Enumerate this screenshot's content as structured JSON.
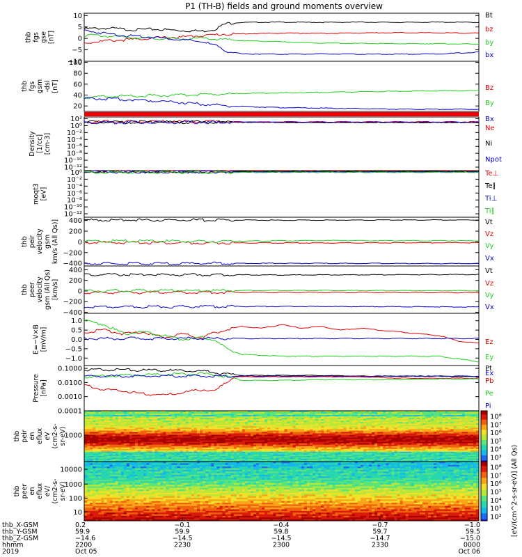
{
  "title": "P1 (TH-B) fields and ground moments overview",
  "colors": {
    "black": "#000000",
    "red": "#dd0000",
    "green": "#22cc22",
    "blue": "#0000cc"
  },
  "chart_data": [
    {
      "type": "line",
      "ylabel": [
        "thb",
        "fgs",
        "gse",
        "[nT]"
      ],
      "yticks": [
        "10",
        "5",
        "0",
        "−5",
        "−10"
      ],
      "ytick_values": [
        10,
        5,
        0,
        -5,
        -10
      ],
      "ylim": [
        -10,
        11
      ],
      "series": [
        {
          "name": "Bt",
          "color": "#000000",
          "x": [
            0,
            0.06,
            0.12,
            0.18,
            0.24,
            0.3,
            0.33,
            0.36,
            0.4,
            0.5,
            0.6,
            0.7,
            0.8,
            0.9,
            1.0
          ],
          "y": [
            4.2,
            4.5,
            3.8,
            4.0,
            3.5,
            3.2,
            4.0,
            6.5,
            7.0,
            7.1,
            7.0,
            7.1,
            7.0,
            7.1,
            7.0
          ]
        },
        {
          "name": "bz",
          "color": "#dd0000",
          "x": [
            0,
            0.06,
            0.12,
            0.18,
            0.24,
            0.3,
            0.35,
            0.4,
            0.5,
            0.6,
            0.7,
            0.8,
            0.9,
            1.0
          ],
          "y": [
            -2.0,
            -1.0,
            -0.5,
            0.2,
            0.5,
            1.2,
            1.8,
            2.0,
            2.3,
            2.2,
            2.4,
            2.5,
            2.4,
            2.3
          ]
        },
        {
          "name": "by",
          "color": "#22cc22",
          "x": [
            0,
            0.06,
            0.12,
            0.18,
            0.24,
            0.3,
            0.35,
            0.4,
            0.5,
            0.6,
            0.7,
            0.8,
            0.9,
            1.0
          ],
          "y": [
            1.5,
            1.0,
            0.5,
            0.0,
            -0.3,
            0.0,
            -0.5,
            -1.0,
            -1.5,
            -2.0,
            -2.2,
            -2.3,
            -2.3,
            -2.5
          ]
        },
        {
          "name": "bx",
          "color": "#0000cc",
          "x": [
            0,
            0.06,
            0.12,
            0.18,
            0.24,
            0.3,
            0.33,
            0.36,
            0.4,
            0.5,
            0.6,
            0.7,
            0.8,
            0.9,
            1.0
          ],
          "y": [
            3.5,
            2.0,
            1.0,
            0.5,
            -0.5,
            -1.5,
            -3.0,
            -5.5,
            -6.8,
            -6.9,
            -6.8,
            -6.9,
            -6.9,
            -6.8,
            -6.0
          ]
        }
      ]
    },
    {
      "type": "line",
      "ylabel": [
        "thb",
        "fgs",
        "gsm",
        "-dsl",
        "[nT]"
      ],
      "yticks": [
        "100",
        "80",
        "60",
        "40",
        "20"
      ],
      "ytick_values": [
        100,
        80,
        60,
        40,
        20
      ],
      "ylim": [
        10,
        102
      ],
      "series": [
        {
          "name": "Bz",
          "color": "#dd0000",
          "x": [],
          "y": []
        },
        {
          "name": "By",
          "color": "#22cc22",
          "x": [
            0,
            0.1,
            0.2,
            0.3,
            0.4,
            0.5,
            0.6,
            0.7,
            0.8,
            0.9,
            1.0
          ],
          "y": [
            36,
            38,
            39,
            41,
            43,
            44,
            45,
            46,
            47,
            48,
            48
          ]
        },
        {
          "name": "Bx",
          "color": "#0000cc",
          "x": [
            0,
            0.1,
            0.2,
            0.3,
            0.4,
            0.5,
            0.6,
            0.7,
            0.8,
            0.9,
            1.0
          ],
          "y": [
            34,
            32,
            29,
            23,
            19,
            17,
            16,
            15,
            14,
            14,
            14
          ]
        }
      ]
    },
    {
      "type": "line",
      "ylabel": [
        "Density",
        "[1/cc]",
        "[cm-3]"
      ],
      "yticks": [
        "10²",
        "10⁰",
        "10⁻²",
        "10⁻⁴",
        "10⁻⁶",
        "10⁻⁸",
        "10⁻¹⁰",
        "10⁻¹²"
      ],
      "ytick_values": [
        2,
        0,
        -2,
        -4,
        -6,
        -8,
        -10,
        -12
      ],
      "ylim": [
        -13,
        2.5
      ],
      "log": true,
      "series": [
        {
          "name": "Ne",
          "color": "#dd0000",
          "x": [
            0,
            1
          ],
          "y": [
            1.1,
            1.1
          ]
        },
        {
          "name": "Ni",
          "color": "#000000",
          "x": [
            0,
            0.45,
            0.5,
            1
          ],
          "y": [
            1.0,
            1.0,
            0.9,
            0.9
          ]
        },
        {
          "name": "Npot",
          "color": "#0000cc",
          "x": [
            0,
            1
          ],
          "y": [
            0.95,
            0.95
          ]
        }
      ]
    },
    {
      "type": "line",
      "ylabel": [
        "moqt3",
        "[eV]"
      ],
      "yticks": [
        "10⁰",
        "10⁻²",
        "10⁻⁴",
        "10⁻⁶",
        "10⁻⁸",
        "10⁻¹⁰",
        "10⁻¹²"
      ],
      "ytick_values": [
        0,
        -2,
        -4,
        -6,
        -8,
        -10,
        -12
      ],
      "ylim": [
        -13,
        0.5
      ],
      "log": true,
      "series": [
        {
          "name": "Te⊥",
          "color": "#dd0000",
          "x": [
            0,
            1
          ],
          "y": [
            0.3,
            0.3
          ]
        },
        {
          "name": "Te∥",
          "color": "#000000",
          "x": [
            0,
            1
          ],
          "y": [
            0.2,
            0.2
          ]
        },
        {
          "name": "Ti⊥",
          "color": "#0000cc",
          "x": [
            0,
            1
          ],
          "y": [
            0.1,
            0.1
          ]
        },
        {
          "name": "Ti∥",
          "color": "#22cc22",
          "x": [
            0,
            1
          ],
          "y": [
            0.0,
            0.0
          ]
        }
      ]
    },
    {
      "type": "line",
      "ylabel": [
        "thb",
        "peir",
        "velocity",
        "gsm",
        "km/s (All Qs)]"
      ],
      "yticks": [
        "400",
        "200",
        "0",
        "−200",
        "−400"
      ],
      "ytick_values": [
        400,
        200,
        0,
        -200,
        -400
      ],
      "ylim": [
        -450,
        460
      ],
      "series": [
        {
          "name": "Vt",
          "color": "#000000",
          "x": [
            0,
            0.5,
            1
          ],
          "y": [
            410,
            405,
            410
          ]
        },
        {
          "name": "Vz",
          "color": "#dd0000",
          "x": [
            0,
            0.3,
            0.6,
            1
          ],
          "y": [
            -10,
            -20,
            -20,
            -15
          ]
        },
        {
          "name": "Vy",
          "color": "#22cc22",
          "x": [
            0,
            0.3,
            0.6,
            1
          ],
          "y": [
            20,
            10,
            25,
            20
          ]
        },
        {
          "name": "Vx",
          "color": "#0000cc",
          "x": [
            0,
            0.5,
            1
          ],
          "y": [
            -405,
            -400,
            -405
          ]
        }
      ]
    },
    {
      "type": "line",
      "ylabel": [
        "thb",
        "peer",
        "velocity",
        "gsm (All Qs)",
        "[km/s]"
      ],
      "yticks": [
        "400",
        "200",
        "0",
        "−200",
        "−400"
      ],
      "ytick_values": [
        400,
        200,
        0,
        -200,
        -400
      ],
      "ylim": [
        -420,
        470
      ],
      "series": [
        {
          "name": "Vt",
          "color": "#000000",
          "x": [
            0,
            0.5,
            1
          ],
          "y": [
            310,
            300,
            310
          ]
        },
        {
          "name": "Vz",
          "color": "#dd0000",
          "x": [
            0,
            0.5,
            1
          ],
          "y": [
            -30,
            -25,
            -30
          ]
        },
        {
          "name": "Vy",
          "color": "#22cc22",
          "x": [
            0,
            0.5,
            1
          ],
          "y": [
            5,
            10,
            5
          ]
        },
        {
          "name": "Vx",
          "color": "#0000cc",
          "x": [
            0,
            0.5,
            1
          ],
          "y": [
            -300,
            -290,
            -300
          ]
        }
      ]
    },
    {
      "type": "line",
      "ylabel": [
        "E=−V×B",
        "[mV/m]"
      ],
      "yticks": [
        "1.0",
        "0.5",
        "0.0",
        "−0.5",
        "−1.0"
      ],
      "ytick_values": [
        1.0,
        0.5,
        0.0,
        -0.5,
        -1.0
      ],
      "ylim": [
        -1.4,
        1.4
      ],
      "series": [
        {
          "name": "Ez",
          "color": "#dd0000",
          "x": [
            0,
            0.05,
            0.1,
            0.15,
            0.2,
            0.25,
            0.3,
            0.35,
            0.4,
            0.45,
            0.5,
            0.55,
            0.6,
            0.65,
            0.7,
            0.75,
            0.8,
            0.85,
            0.9,
            0.95,
            1.0
          ],
          "y": [
            0.4,
            0.5,
            0.3,
            0.4,
            0.1,
            0.3,
            0.1,
            0.5,
            0.7,
            0.6,
            0.8,
            0.6,
            0.7,
            0.5,
            0.6,
            0.5,
            0.4,
            0.3,
            0.2,
            -0.1,
            -0.2
          ]
        },
        {
          "name": "Ey",
          "color": "#22cc22",
          "x": [
            0,
            0.05,
            0.1,
            0.15,
            0.2,
            0.25,
            0.3,
            0.33,
            0.36,
            0.4,
            0.5,
            0.6,
            0.7,
            0.8,
            0.9,
            1.0
          ],
          "y": [
            1.0,
            0.8,
            0.3,
            0.4,
            0.2,
            0.0,
            0.1,
            0.0,
            -0.5,
            -0.8,
            -0.9,
            -0.9,
            -0.9,
            -0.9,
            -0.9,
            -1.2
          ]
        },
        {
          "name": "Ex",
          "color": "#0000cc",
          "x": [
            0,
            1
          ],
          "y": [
            0.05,
            0.05
          ]
        }
      ]
    },
    {
      "type": "line",
      "ylabel": [
        "Pressure",
        "[nPa]"
      ],
      "yticks": [
        "0.1000",
        "0.0100",
        "0.0010",
        "0.0001"
      ],
      "ytick_values": [
        -1,
        -2,
        -3,
        -4
      ],
      "ylim": [
        -4,
        -0.8
      ],
      "log": true,
      "series": [
        {
          "name": "Pt",
          "color": "#000000",
          "x": [
            0,
            0.1,
            0.2,
            0.3,
            0.35,
            0.4,
            0.5,
            0.6,
            0.7,
            0.8,
            0.9,
            1.0
          ],
          "y": [
            -1.1,
            -1.1,
            -1.15,
            -1.2,
            -1.35,
            -1.5,
            -1.5,
            -1.5,
            -1.55,
            -1.55,
            -1.55,
            -1.6
          ]
        },
        {
          "name": "Pb",
          "color": "#dd0000",
          "x": [
            0,
            0.05,
            0.1,
            0.15,
            0.2,
            0.25,
            0.3,
            0.33,
            0.36,
            0.38,
            0.5,
            0.6,
            0.7,
            0.8,
            0.9,
            1.0
          ],
          "y": [
            -2.2,
            -2.5,
            -2.6,
            -2.8,
            -2.9,
            -2.7,
            -2.5,
            -2.6,
            -2.0,
            -1.6,
            -1.6,
            -1.6,
            -1.6,
            -1.7,
            -1.7,
            -1.7
          ]
        },
        {
          "name": "Pe",
          "color": "#22cc22",
          "x": [
            0,
            0.1,
            0.2,
            0.3,
            0.36,
            0.4,
            0.5,
            0.6,
            0.7,
            0.8,
            0.9,
            1.0
          ],
          "y": [
            -1.6,
            -1.5,
            -1.4,
            -1.4,
            -1.55,
            -1.85,
            -1.85,
            -1.8,
            -1.8,
            -1.8,
            -1.75,
            -1.75
          ]
        },
        {
          "name": "Pi",
          "color": "#0000cc",
          "x": [
            0,
            0.5,
            1
          ],
          "y": [
            -1.55,
            -1.55,
            -1.55
          ]
        }
      ]
    },
    {
      "type": "heatmap",
      "ylabel": [
        "thb",
        "peir",
        "en",
        "eflux",
        "eV",
        "(cm2-s-",
        "sr-eV)"
      ],
      "yticks": [
        "1000"
      ],
      "colorbar_ticks": [
        "10⁸",
        "10⁷",
        "10⁶",
        "10⁵",
        "10⁴",
        "10³"
      ]
    },
    {
      "type": "heatmap",
      "ylabel": [
        "thb",
        "peer",
        "en",
        "eflux",
        "eV/",
        "(cm2-s-",
        "sr-eV)"
      ],
      "yticks": [
        "10000",
        "1000",
        "100",
        "10"
      ],
      "colorbar_ticks": [
        "10⁸",
        "10⁷",
        "10⁶",
        "10⁵",
        "10⁴",
        "10³",
        "10²"
      ]
    }
  ],
  "colorbar_label": "[eV/(cm^2-s-sr-eV)] (All Qs)",
  "x_annotations": {
    "rows": [
      {
        "label": "thb_X-GSM",
        "values": [
          "0.2",
          "−0.1",
          "−0.4",
          "−0.7",
          "−1.0"
        ]
      },
      {
        "label": "thb_Y-GSM",
        "values": [
          "59.9",
          "59.9",
          "59.8",
          "59.7",
          "59.5"
        ]
      },
      {
        "label": "thb_Z-GSM",
        "values": [
          "−14.6",
          "−14.5",
          "−14.5",
          "−14.7",
          "−15.0"
        ]
      },
      {
        "label": "hhmm",
        "values": [
          "2200",
          "2230",
          "2300",
          "2330",
          "0000"
        ]
      },
      {
        "label": "2019",
        "values": [
          "Oct 05",
          "",
          "",
          "",
          "Oct 06"
        ]
      }
    ]
  }
}
